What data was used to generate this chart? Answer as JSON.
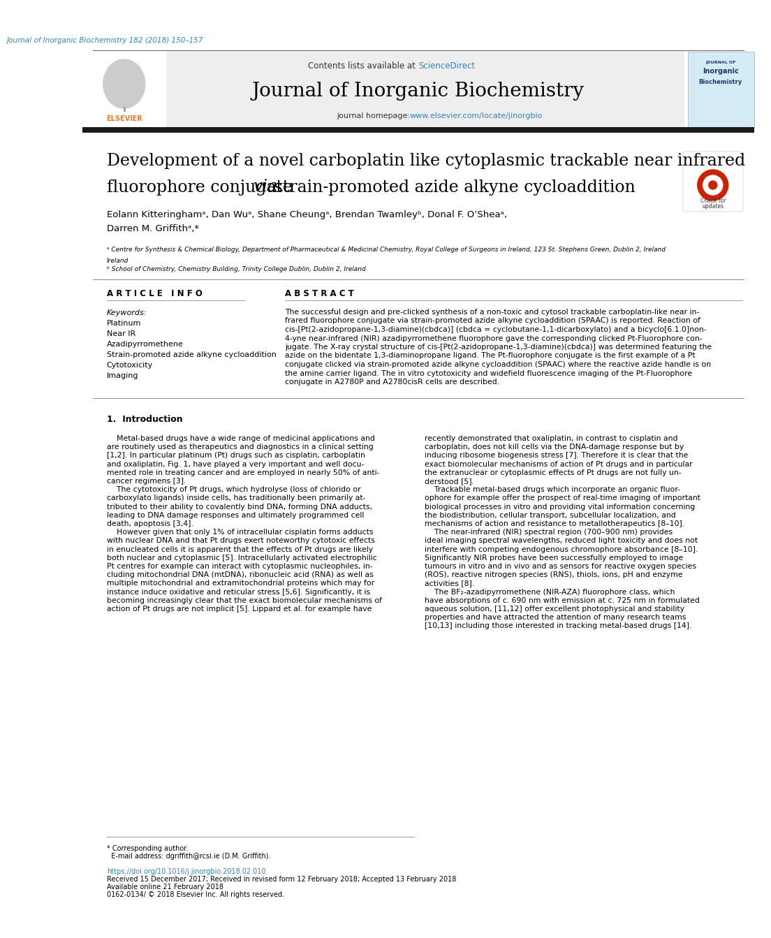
{
  "journal_ref": "Journal of Inorganic Biochemistry 182 (2018) 150–157",
  "contents_line": "Contents lists available at ScienceDirect",
  "journal_name": "Journal of Inorganic Biochemistry",
  "homepage_label": "journal homepage: ",
  "homepage_url": "www.elsevier.com/locate/jinorgbio",
  "title_line1": "Development of a novel carboplatin like cytoplasmic trackable near infrared",
  "title_line2": "fluorophore conjugate ",
  "title_via": "via",
  "title_line2b": " strain-promoted azide alkyne cycloaddition",
  "authors": "Eolann Kitteringhamᵃ, Dan Wuᵃ, Shane Cheungᵃ, Brendan Twamleyᵇ, Donal F. O’Sheaᵃ,",
  "authors2": "Darren M. Griffithᵃ,*",
  "affil_a": "ᵃ Centre for Synthesis & Chemical Biology, Department of Pharmaceutical & Medicinal Chemistry, Royal College of Surgeons in Ireland, 123 St. Stephens Green, Dublin 2, Ireland",
  "affil_b": "ᵇ School of Chemistry, Chemistry Building, Trinity College Dublin, Dublin 2, Ireland",
  "article_info_header": "A R T I C L E   I N F O",
  "abstract_header": "A B S T R A C T",
  "keywords_label": "Keywords:",
  "keywords": [
    "Platinum",
    "Near IR",
    "Azadipyrromethene",
    "Strain-promoted azide alkyne cycloaddition",
    "Cytotoxicity",
    "Imaging"
  ],
  "bg_color": "#ffffff",
  "header_bg": "#eeeeee",
  "elsevier_orange": "#f47920",
  "link_color": "#2e86c1",
  "dark_bar_color": "#1a1a1a",
  "text_color": "#000000",
  "gray_color": "#888888",
  "intro_left": [
    "    Metal-based drugs have a wide range of medicinal applications and",
    "are routinely used as therapeutics and diagnostics in a clinical setting",
    "[1,2]. In particular platinum (Pt) drugs such as cisplatin, carboplatin",
    "and oxaliplatin, Fig. 1, have played a very important and well docu-",
    "mented role in treating cancer and are employed in nearly 50% of anti-",
    "cancer regimens [3].",
    "    The cytotoxicity of Pt drugs, which hydrolyse (loss of chlorido or",
    "carboxylato ligands) inside cells, has traditionally been primarily at-",
    "tributed to their ability to covalently bind DNA, forming DNA adducts,",
    "leading to DNA damage responses and ultimately programmed cell",
    "death, apoptosis [3,4].",
    "    However given that only 1% of intracellular cisplatin forms adducts",
    "with nuclear DNA and that Pt drugs exert noteworthy cytotoxic effects",
    "in enucleated cells it is apparent that the effects of Pt drugs are likely",
    "both nuclear and cytoplasmic [5]. Intracellularly activated electrophilic",
    "Pt centres for example can interact with cytoplasmic nucleophiles, in-",
    "cluding mitochondrial DNA (mtDNA), ribonucleic acid (RNA) as well as",
    "multiple mitochondrial and extramitochondrial proteins which may for",
    "instance induce oxidative and reticular stress [5,6]. Significantly, it is",
    "becoming increasingly clear that the exact biomolecular mechanisms of",
    "action of Pt drugs are not implicit [5]. Lippard et al. for example have"
  ],
  "intro_right": [
    "recently demonstrated that oxaliplatin, in contrast to cisplatin and",
    "carboplatin, does not kill cells via the DNA-damage response but by",
    "inducing ribosome biogenesis stress [7]. Therefore it is clear that the",
    "exact biomolecular mechanisms of action of Pt drugs and in particular",
    "the extranuclear or cytoplasmic effects of Pt drugs are not fully un-",
    "derstood [5].",
    "    Trackable metal-based drugs which incorporate an organic fluor-",
    "ophore for example offer the prospect of real-time imaging of important",
    "biological processes in vitro and providing vital information concerning",
    "the biodistribution, cellular transport, subcellular localization, and",
    "mechanisms of action and resistance to metallotherapeutics [8–10].",
    "    The near-infrared (NIR) spectral region (700–900 nm) provides",
    "ideal imaging spectral wavelengths, reduced light toxicity and does not",
    "interfere with competing endogenous chromophore absorbance [8–10].",
    "Significantly NIR probes have been successfully employed to image",
    "tumours in vitro and in vivo and as sensors for reactive oxygen species",
    "(ROS), reactive nitrogen species (RNS), thiols, ions, pH and enzyme",
    "activities [8].",
    "    The BF₂-azadipyrromethene (NIR-AZA) fluorophore class, which",
    "have absorptions of c. 690 nm with emission at c. 725 nm in formulated",
    "aqueous solution, [11,12] offer excellent photophysical and stability",
    "properties and have attracted the attention of many research teams",
    "[10,13] including those interested in tracking metal-based drugs [14]."
  ],
  "abstract_lines": [
    "The successful design and pre-clicked synthesis of a non-toxic and cytosol trackable carboplatin-like near in-",
    "frared fluorophore conjugate via strain-promoted azide alkyne cycloaddition (SPAAC) is reported. Reaction of",
    "cis-[Pt(2-azidopropane-1,3-diamine)(cbdca)] (cbdca = cyclobutane-1,1-dicarboxylato) and a bicyclo[6.1.0]non-",
    "4-yne near-infrared (NIR) azadipyrromethene fluorophore gave the corresponding clicked Pt-Fluorophore con-",
    "jugate. The X-ray crystal structure of cis-[Pt(2-azidopropane-1,3-diamine)(cbdca)] was determined featuring the",
    "azide on the bidentate 1,3-diaminopropane ligand. The Pt-fluorophore conjugate is the first example of a Pt",
    "conjugate clicked via strain-promoted azide alkyne cycloaddition (SPAAC) where the reactive azide handle is on",
    "the amine carrier ligand. The in vitro cytotoxicity and widefield fluorescence imaging of the Pt-Fluorophore",
    "conjugate in A2780P and A2780cisR cells are described."
  ],
  "footer_lines": [
    "* Corresponding author.",
    "  E-mail address: dgriffith@rcsi.ie (D.M. Griffith).",
    "",
    "https://doi.org/10.1016/j.jinorgbio.2018.02.010",
    "Received 15 December 2017; Received in revised form 12 February 2018; Accepted 13 February 2018",
    "Available online 21 February 2018",
    "0162-0134/ © 2018 Elsevier Inc. All rights reserved."
  ]
}
